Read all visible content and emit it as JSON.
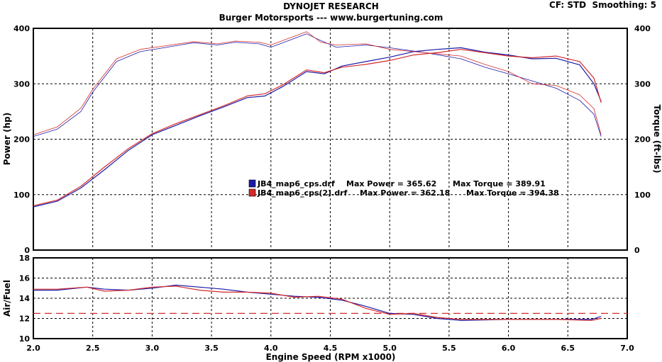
{
  "header": {
    "title": "DYNOJET RESEARCH",
    "subtitle": "Burger Motorsports --- www.burgertuning.com",
    "cf_label": "CF: STD",
    "smoothing_label": "Smoothing: 5"
  },
  "chart_data": [
    {
      "type": "line",
      "x_ticks": [
        "2.0",
        "2.5",
        "3.0",
        "3.5",
        "4.0",
        "4.5",
        "5.0",
        "5.5",
        "6.0",
        "6.5",
        "7.0"
      ],
      "xlim": [
        2.0,
        7.0
      ],
      "ylabel_left": "Power (hp)",
      "ylabel_right": "Torque (ft-lbs)",
      "ylim": [
        0,
        400
      ],
      "y_ticks": [
        "0",
        "100",
        "200",
        "300",
        "400"
      ],
      "grid": true,
      "legend": [
        {
          "file": "JB4_map6_cps.drf",
          "power_label": "Max Power = 365.62",
          "torque_label": "Max Torque = 389.91",
          "color": "#1a1aa8"
        },
        {
          "file": "JB4_map6_cps(2).drf",
          "power_label": "Max Power = 362.18",
          "torque_label": "Max Torque = 394.38",
          "color": "#d42a2a"
        }
      ],
      "series": [
        {
          "name": "JB4_map6_cps.drf",
          "color": "#1a1aa8",
          "power": [
            [
              2.0,
              78
            ],
            [
              2.2,
              88
            ],
            [
              2.4,
              112
            ],
            [
              2.6,
              145
            ],
            [
              2.8,
              180
            ],
            [
              3.0,
              208
            ],
            [
              3.2,
              225
            ],
            [
              3.4,
              242
            ],
            [
              3.6,
              258
            ],
            [
              3.8,
              275
            ],
            [
              3.95,
              278
            ],
            [
              4.1,
              295
            ],
            [
              4.3,
              322
            ],
            [
              4.45,
              318
            ],
            [
              4.6,
              332
            ],
            [
              4.8,
              340
            ],
            [
              5.0,
              348
            ],
            [
              5.2,
              358
            ],
            [
              5.4,
              362
            ],
            [
              5.6,
              365
            ],
            [
              5.8,
              357
            ],
            [
              6.0,
              352
            ],
            [
              6.2,
              345
            ],
            [
              6.4,
              346
            ],
            [
              6.6,
              334
            ],
            [
              6.72,
              300
            ],
            [
              6.78,
              268
            ]
          ],
          "torque": [
            [
              2.0,
              205
            ],
            [
              2.2,
              218
            ],
            [
              2.4,
              250
            ],
            [
              2.5,
              285
            ],
            [
              2.7,
              340
            ],
            [
              2.9,
              358
            ],
            [
              3.1,
              365
            ],
            [
              3.35,
              374
            ],
            [
              3.55,
              370
            ],
            [
              3.7,
              375
            ],
            [
              3.9,
              372
            ],
            [
              4.0,
              366
            ],
            [
              4.15,
              378
            ],
            [
              4.3,
              390
            ],
            [
              4.42,
              378
            ],
            [
              4.55,
              366
            ],
            [
              4.8,
              370
            ],
            [
              5.0,
              365
            ],
            [
              5.3,
              356
            ],
            [
              5.6,
              345
            ],
            [
              5.8,
              330
            ],
            [
              6.0,
              318
            ],
            [
              6.2,
              305
            ],
            [
              6.4,
              292
            ],
            [
              6.6,
              270
            ],
            [
              6.72,
              245
            ],
            [
              6.78,
              205
            ]
          ]
        },
        {
          "name": "JB4_map6_cps(2).drf",
          "color": "#d42a2a",
          "power": [
            [
              2.0,
              80
            ],
            [
              2.2,
              90
            ],
            [
              2.4,
              115
            ],
            [
              2.6,
              150
            ],
            [
              2.8,
              183
            ],
            [
              3.0,
              210
            ],
            [
              3.2,
              228
            ],
            [
              3.4,
              244
            ],
            [
              3.6,
              260
            ],
            [
              3.8,
              278
            ],
            [
              3.95,
              282
            ],
            [
              4.1,
              298
            ],
            [
              4.3,
              325
            ],
            [
              4.45,
              320
            ],
            [
              4.6,
              330
            ],
            [
              4.8,
              335
            ],
            [
              5.0,
              342
            ],
            [
              5.2,
              352
            ],
            [
              5.4,
              356
            ],
            [
              5.6,
              362
            ],
            [
              5.8,
              356
            ],
            [
              6.0,
              350
            ],
            [
              6.2,
              347
            ],
            [
              6.4,
              350
            ],
            [
              6.6,
              340
            ],
            [
              6.72,
              310
            ],
            [
              6.78,
              266
            ]
          ],
          "torque": [
            [
              2.0,
              208
            ],
            [
              2.2,
              222
            ],
            [
              2.4,
              256
            ],
            [
              2.5,
              290
            ],
            [
              2.7,
              345
            ],
            [
              2.9,
              362
            ],
            [
              3.1,
              368
            ],
            [
              3.35,
              376
            ],
            [
              3.55,
              372
            ],
            [
              3.7,
              377
            ],
            [
              3.9,
              375
            ],
            [
              4.0,
              370
            ],
            [
              4.15,
              382
            ],
            [
              4.3,
              394
            ],
            [
              4.42,
              375
            ],
            [
              4.55,
              370
            ],
            [
              4.8,
              372
            ],
            [
              5.0,
              362
            ],
            [
              5.3,
              356
            ],
            [
              5.6,
              350
            ],
            [
              5.8,
              335
            ],
            [
              6.0,
              322
            ],
            [
              6.2,
              300
            ],
            [
              6.4,
              297
            ],
            [
              6.6,
              280
            ],
            [
              6.72,
              255
            ],
            [
              6.78,
              208
            ]
          ]
        }
      ]
    },
    {
      "type": "line",
      "x_ticks": [
        "2.0",
        "2.5",
        "3.0",
        "3.5",
        "4.0",
        "4.5",
        "5.0",
        "5.5",
        "6.0",
        "6.5",
        "7.0"
      ],
      "xlim": [
        2.0,
        7.0
      ],
      "xlabel": "Engine Speed (RPM x1000)",
      "ylabel": "Air/Fuel",
      "ylim": [
        10,
        18
      ],
      "y_ticks": [
        "10",
        "12",
        "14",
        "16",
        "18"
      ],
      "grid": true,
      "reference_line": 12.5,
      "series": [
        {
          "name": "JB4_map6_cps.drf",
          "color": "#1a1aa8",
          "values": [
            [
              2.0,
              14.8
            ],
            [
              2.2,
              14.8
            ],
            [
              2.45,
              15.1
            ],
            [
              2.6,
              14.9
            ],
            [
              2.8,
              14.8
            ],
            [
              3.0,
              15.0
            ],
            [
              3.2,
              15.3
            ],
            [
              3.4,
              15.1
            ],
            [
              3.6,
              14.9
            ],
            [
              3.8,
              14.6
            ],
            [
              4.0,
              14.4
            ],
            [
              4.2,
              14.2
            ],
            [
              4.4,
              14.1
            ],
            [
              4.6,
              13.8
            ],
            [
              4.8,
              13.2
            ],
            [
              5.0,
              12.5
            ],
            [
              5.2,
              12.4
            ],
            [
              5.4,
              12.0
            ],
            [
              5.6,
              11.8
            ],
            [
              6.0,
              11.9
            ],
            [
              6.4,
              11.9
            ],
            [
              6.7,
              11.9
            ],
            [
              6.78,
              12.2
            ]
          ]
        },
        {
          "name": "JB4_map6_cps(2).drf",
          "color": "#d42a2a",
          "values": [
            [
              2.0,
              14.9
            ],
            [
              2.2,
              14.9
            ],
            [
              2.45,
              15.1
            ],
            [
              2.6,
              14.7
            ],
            [
              2.8,
              14.8
            ],
            [
              3.0,
              15.1
            ],
            [
              3.2,
              15.2
            ],
            [
              3.4,
              14.8
            ],
            [
              3.6,
              14.6
            ],
            [
              3.8,
              14.6
            ],
            [
              4.0,
              14.5
            ],
            [
              4.2,
              14.1
            ],
            [
              4.4,
              14.2
            ],
            [
              4.6,
              13.9
            ],
            [
              4.8,
              13.0
            ],
            [
              5.0,
              12.4
            ],
            [
              5.2,
              12.5
            ],
            [
              5.4,
              12.1
            ],
            [
              5.6,
              11.9
            ],
            [
              6.0,
              11.9
            ],
            [
              6.4,
              11.9
            ],
            [
              6.7,
              11.8
            ],
            [
              6.78,
              12.0
            ]
          ]
        }
      ]
    }
  ]
}
